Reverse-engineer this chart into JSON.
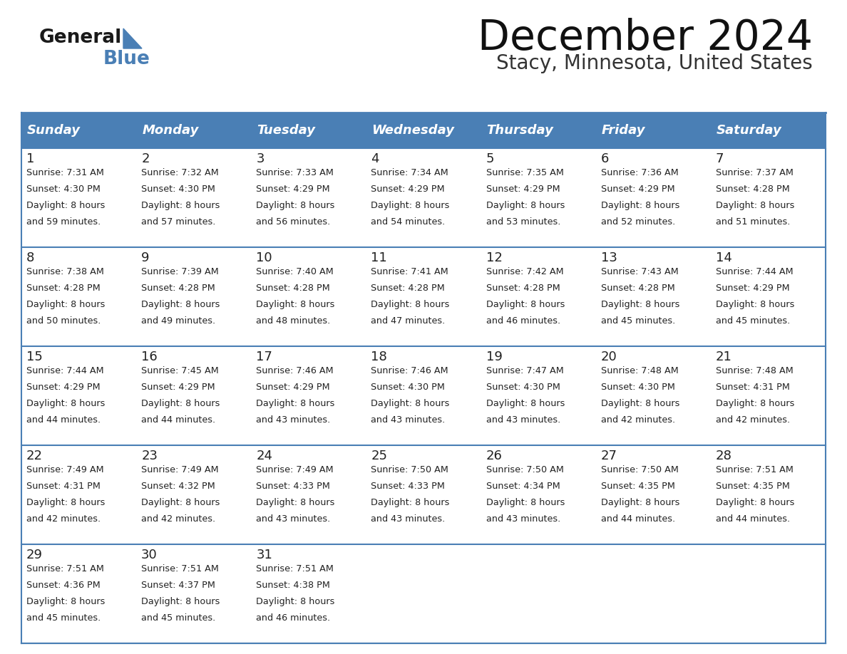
{
  "title": "December 2024",
  "subtitle": "Stacy, Minnesota, United States",
  "header_color": "#4a7fb5",
  "header_text_color": "#ffffff",
  "day_names": [
    "Sunday",
    "Monday",
    "Tuesday",
    "Wednesday",
    "Thursday",
    "Friday",
    "Saturday"
  ],
  "cell_bg_color": "#ffffff",
  "row_bg_even": "#ffffff",
  "row_bg_odd": "#f0f4f8",
  "border_color": "#4a7fb5",
  "date_color": "#222222",
  "text_color": "#222222",
  "days": [
    {
      "day": 1,
      "col": 0,
      "row": 0,
      "sunrise": "7:31 AM",
      "sunset": "4:30 PM",
      "daylight": "8 hours and 59 minutes"
    },
    {
      "day": 2,
      "col": 1,
      "row": 0,
      "sunrise": "7:32 AM",
      "sunset": "4:30 PM",
      "daylight": "8 hours and 57 minutes"
    },
    {
      "day": 3,
      "col": 2,
      "row": 0,
      "sunrise": "7:33 AM",
      "sunset": "4:29 PM",
      "daylight": "8 hours and 56 minutes"
    },
    {
      "day": 4,
      "col": 3,
      "row": 0,
      "sunrise": "7:34 AM",
      "sunset": "4:29 PM",
      "daylight": "8 hours and 54 minutes"
    },
    {
      "day": 5,
      "col": 4,
      "row": 0,
      "sunrise": "7:35 AM",
      "sunset": "4:29 PM",
      "daylight": "8 hours and 53 minutes"
    },
    {
      "day": 6,
      "col": 5,
      "row": 0,
      "sunrise": "7:36 AM",
      "sunset": "4:29 PM",
      "daylight": "8 hours and 52 minutes"
    },
    {
      "day": 7,
      "col": 6,
      "row": 0,
      "sunrise": "7:37 AM",
      "sunset": "4:28 PM",
      "daylight": "8 hours and 51 minutes"
    },
    {
      "day": 8,
      "col": 0,
      "row": 1,
      "sunrise": "7:38 AM",
      "sunset": "4:28 PM",
      "daylight": "8 hours and 50 minutes"
    },
    {
      "day": 9,
      "col": 1,
      "row": 1,
      "sunrise": "7:39 AM",
      "sunset": "4:28 PM",
      "daylight": "8 hours and 49 minutes"
    },
    {
      "day": 10,
      "col": 2,
      "row": 1,
      "sunrise": "7:40 AM",
      "sunset": "4:28 PM",
      "daylight": "8 hours and 48 minutes"
    },
    {
      "day": 11,
      "col": 3,
      "row": 1,
      "sunrise": "7:41 AM",
      "sunset": "4:28 PM",
      "daylight": "8 hours and 47 minutes"
    },
    {
      "day": 12,
      "col": 4,
      "row": 1,
      "sunrise": "7:42 AM",
      "sunset": "4:28 PM",
      "daylight": "8 hours and 46 minutes"
    },
    {
      "day": 13,
      "col": 5,
      "row": 1,
      "sunrise": "7:43 AM",
      "sunset": "4:28 PM",
      "daylight": "8 hours and 45 minutes"
    },
    {
      "day": 14,
      "col": 6,
      "row": 1,
      "sunrise": "7:44 AM",
      "sunset": "4:29 PM",
      "daylight": "8 hours and 45 minutes"
    },
    {
      "day": 15,
      "col": 0,
      "row": 2,
      "sunrise": "7:44 AM",
      "sunset": "4:29 PM",
      "daylight": "8 hours and 44 minutes"
    },
    {
      "day": 16,
      "col": 1,
      "row": 2,
      "sunrise": "7:45 AM",
      "sunset": "4:29 PM",
      "daylight": "8 hours and 44 minutes"
    },
    {
      "day": 17,
      "col": 2,
      "row": 2,
      "sunrise": "7:46 AM",
      "sunset": "4:29 PM",
      "daylight": "8 hours and 43 minutes"
    },
    {
      "day": 18,
      "col": 3,
      "row": 2,
      "sunrise": "7:46 AM",
      "sunset": "4:30 PM",
      "daylight": "8 hours and 43 minutes"
    },
    {
      "day": 19,
      "col": 4,
      "row": 2,
      "sunrise": "7:47 AM",
      "sunset": "4:30 PM",
      "daylight": "8 hours and 43 minutes"
    },
    {
      "day": 20,
      "col": 5,
      "row": 2,
      "sunrise": "7:48 AM",
      "sunset": "4:30 PM",
      "daylight": "8 hours and 42 minutes"
    },
    {
      "day": 21,
      "col": 6,
      "row": 2,
      "sunrise": "7:48 AM",
      "sunset": "4:31 PM",
      "daylight": "8 hours and 42 minutes"
    },
    {
      "day": 22,
      "col": 0,
      "row": 3,
      "sunrise": "7:49 AM",
      "sunset": "4:31 PM",
      "daylight": "8 hours and 42 minutes"
    },
    {
      "day": 23,
      "col": 1,
      "row": 3,
      "sunrise": "7:49 AM",
      "sunset": "4:32 PM",
      "daylight": "8 hours and 42 minutes"
    },
    {
      "day": 24,
      "col": 2,
      "row": 3,
      "sunrise": "7:49 AM",
      "sunset": "4:33 PM",
      "daylight": "8 hours and 43 minutes"
    },
    {
      "day": 25,
      "col": 3,
      "row": 3,
      "sunrise": "7:50 AM",
      "sunset": "4:33 PM",
      "daylight": "8 hours and 43 minutes"
    },
    {
      "day": 26,
      "col": 4,
      "row": 3,
      "sunrise": "7:50 AM",
      "sunset": "4:34 PM",
      "daylight": "8 hours and 43 minutes"
    },
    {
      "day": 27,
      "col": 5,
      "row": 3,
      "sunrise": "7:50 AM",
      "sunset": "4:35 PM",
      "daylight": "8 hours and 44 minutes"
    },
    {
      "day": 28,
      "col": 6,
      "row": 3,
      "sunrise": "7:51 AM",
      "sunset": "4:35 PM",
      "daylight": "8 hours and 44 minutes"
    },
    {
      "day": 29,
      "col": 0,
      "row": 4,
      "sunrise": "7:51 AM",
      "sunset": "4:36 PM",
      "daylight": "8 hours and 45 minutes"
    },
    {
      "day": 30,
      "col": 1,
      "row": 4,
      "sunrise": "7:51 AM",
      "sunset": "4:37 PM",
      "daylight": "8 hours and 45 minutes"
    },
    {
      "day": 31,
      "col": 2,
      "row": 4,
      "sunrise": "7:51 AM",
      "sunset": "4:38 PM",
      "daylight": "8 hours and 46 minutes"
    }
  ],
  "logo_text_general": "General",
  "logo_text_blue": "Blue",
  "logo_color_general": "#1a1a1a",
  "logo_color_blue": "#4a7fb5",
  "logo_triangle_color": "#4a7fb5"
}
